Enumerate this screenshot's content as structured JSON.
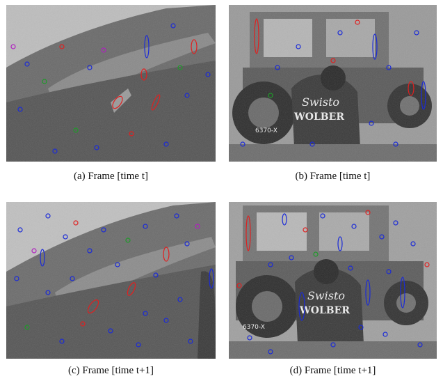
{
  "figure": {
    "panels": [
      {
        "id": "a",
        "caption": "(a) Frame [time t]",
        "scene": "hillside"
      },
      {
        "id": "b",
        "caption": "(b) Frame [time t]",
        "scene": "car"
      },
      {
        "id": "c",
        "caption": "(c) Frame [time t+1]",
        "scene": "hillside"
      },
      {
        "id": "d",
        "caption": "(d) Frame [time t+1]",
        "scene": "car"
      }
    ],
    "car_text": {
      "top": "Swisto",
      "middle": "WOLBER",
      "plate": "6370-X"
    },
    "marker_colors": {
      "red": "#e02020",
      "blue": "#1a2ad8",
      "green": "#1f9a2a",
      "magenta": "#b020c0"
    }
  }
}
